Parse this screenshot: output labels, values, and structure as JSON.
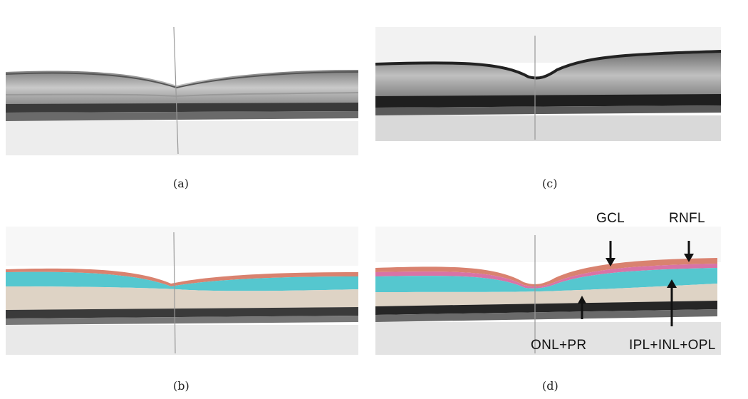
{
  "panels": [
    {
      "id": "a",
      "caption": "(a)",
      "content": "oct-scan"
    },
    {
      "id": "c",
      "caption": "(c)",
      "content": "oct-scan"
    },
    {
      "id": "b",
      "caption": "(b)",
      "content": "segmented-oct-scan"
    },
    {
      "id": "d",
      "caption": "(d)",
      "content": "segmented-oct-scan-annotated"
    }
  ],
  "annotations": {
    "gcl": "GCL",
    "rnfl": "RNFL",
    "onl_pr": "ONL+PR",
    "ipl_inl_opl": "IPL+INL+OPL"
  },
  "colors": {
    "rnfl_layer": "#d9826f",
    "gcl_layer": "#d873a6",
    "ipl_inl_opl_layer": "#55c7cf",
    "onl_pr_layer": "#ded3c5",
    "arrow": "#111111"
  }
}
